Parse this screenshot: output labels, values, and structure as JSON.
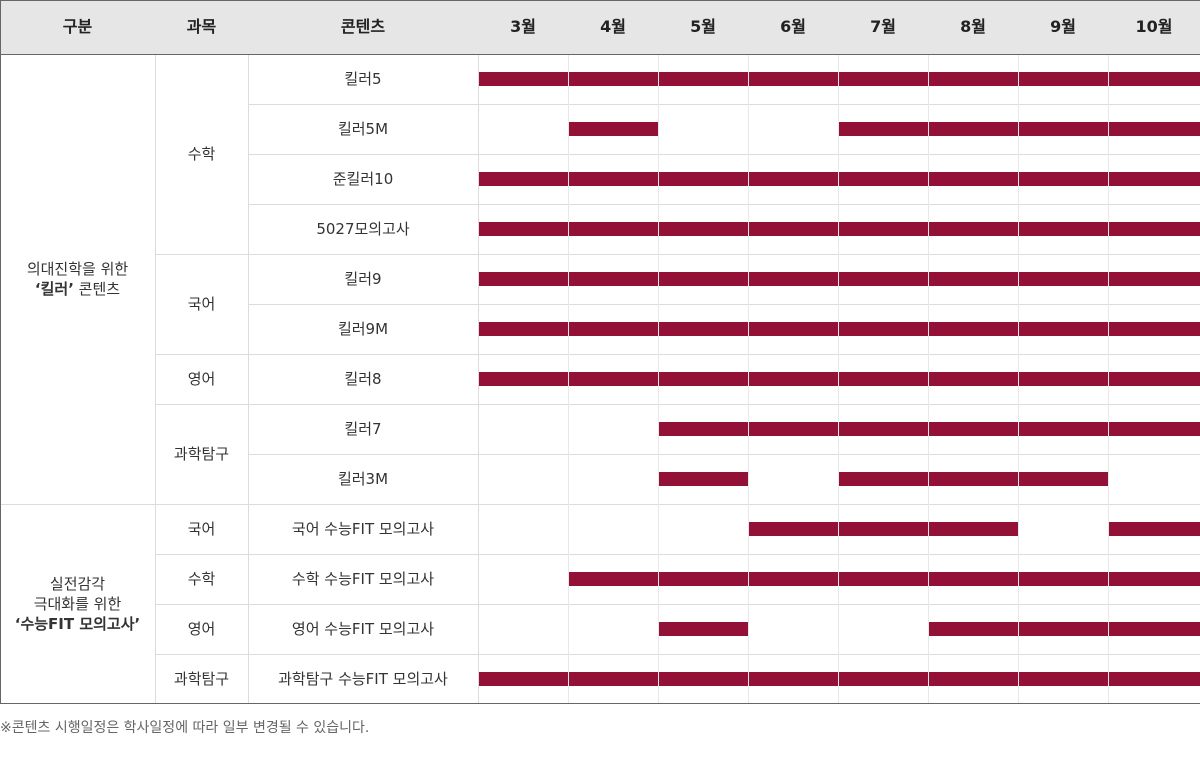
{
  "colors": {
    "bar": "#931136",
    "header_bg": "#e6e6e6",
    "border_outer": "#666666",
    "grid": "#dcdcdc"
  },
  "headers": {
    "category": "구분",
    "subject": "과목",
    "content": "콘텐츠",
    "months": [
      "3월",
      "4월",
      "5월",
      "6월",
      "7월",
      "8월",
      "9월",
      "10월"
    ]
  },
  "groups": [
    {
      "lines": [
        "의대진학을 위한",
        "‘킬러’ 콘텐츠"
      ],
      "bold_line_index": 1,
      "bold_part": "‘킬러’",
      "bold_rest": " 콘텐츠",
      "subjects": [
        {
          "name": "수학",
          "rows": [
            {
              "content": "킬러5",
              "months": [
                true,
                true,
                true,
                true,
                true,
                true,
                true,
                true
              ]
            },
            {
              "content": "킬러5M",
              "months": [
                false,
                true,
                false,
                false,
                true,
                true,
                true,
                true
              ]
            },
            {
              "content": "준킬러10",
              "months": [
                true,
                true,
                true,
                true,
                true,
                true,
                true,
                true
              ]
            },
            {
              "content": "5027모의고사",
              "months": [
                true,
                true,
                true,
                true,
                true,
                true,
                true,
                true
              ]
            }
          ]
        },
        {
          "name": "국어",
          "rows": [
            {
              "content": "킬러9",
              "months": [
                true,
                true,
                true,
                true,
                true,
                true,
                true,
                true
              ]
            },
            {
              "content": "킬러9M",
              "months": [
                true,
                true,
                true,
                true,
                true,
                true,
                true,
                true
              ]
            }
          ]
        },
        {
          "name": "영어",
          "rows": [
            {
              "content": "킬러8",
              "months": [
                true,
                true,
                true,
                true,
                true,
                true,
                true,
                true
              ]
            }
          ]
        },
        {
          "name": "과학탐구",
          "rows": [
            {
              "content": "킬러7",
              "months": [
                false,
                false,
                true,
                true,
                true,
                true,
                true,
                true
              ]
            },
            {
              "content": "킬러3M",
              "months": [
                false,
                false,
                true,
                false,
                true,
                true,
                true,
                false
              ]
            }
          ]
        }
      ]
    },
    {
      "lines": [
        "실전감각",
        "극대화를 위한",
        "‘수능FIT 모의고사’"
      ],
      "bold_line_index": 2,
      "bold_part": "‘수능FIT 모의고사’",
      "bold_rest": "",
      "subjects": [
        {
          "name": "국어",
          "rows": [
            {
              "content": "국어 수능FIT 모의고사",
              "months": [
                false,
                false,
                false,
                true,
                true,
                true,
                false,
                true
              ]
            }
          ]
        },
        {
          "name": "수학",
          "rows": [
            {
              "content": "수학 수능FIT 모의고사",
              "months": [
                false,
                true,
                true,
                true,
                true,
                true,
                true,
                true
              ]
            }
          ]
        },
        {
          "name": "영어",
          "rows": [
            {
              "content": "영어 수능FIT 모의고사",
              "months": [
                false,
                false,
                true,
                false,
                false,
                true,
                true,
                true
              ]
            }
          ]
        },
        {
          "name": "과학탐구",
          "rows": [
            {
              "content": "과학탐구 수능FIT 모의고사",
              "months": [
                true,
                true,
                true,
                true,
                true,
                true,
                true,
                true
              ]
            }
          ]
        }
      ]
    }
  ],
  "footnote": "※콘텐츠 시행일정은 학사일정에 따라 일부 변경될 수 있습니다."
}
